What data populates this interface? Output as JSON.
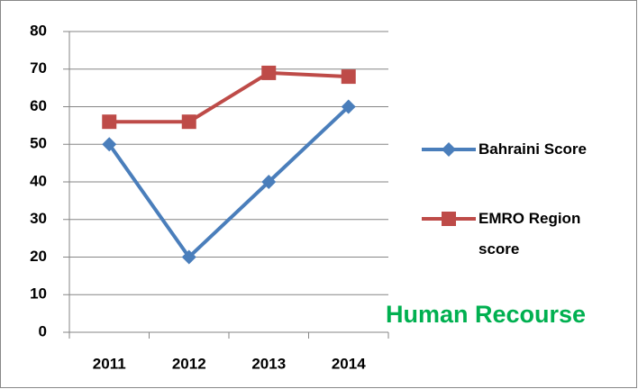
{
  "chart_data": {
    "type": "line",
    "categories": [
      "2011",
      "2012",
      "2013",
      "2014"
    ],
    "series": [
      {
        "name": "Bahraini Score",
        "color": "#4a7ebb",
        "marker": "diamond",
        "values": [
          50,
          20,
          40,
          60
        ]
      },
      {
        "name": "EMRO Region score",
        "color": "#be4b48",
        "marker": "square",
        "values": [
          56,
          56,
          69,
          68
        ]
      }
    ],
    "ylim": [
      0,
      80
    ],
    "yticks": [
      0,
      10,
      20,
      30,
      40,
      50,
      60,
      70,
      80
    ],
    "grid": true,
    "legend": "right",
    "annotation": "Human Recourse",
    "annotation_color": "#00b050"
  }
}
